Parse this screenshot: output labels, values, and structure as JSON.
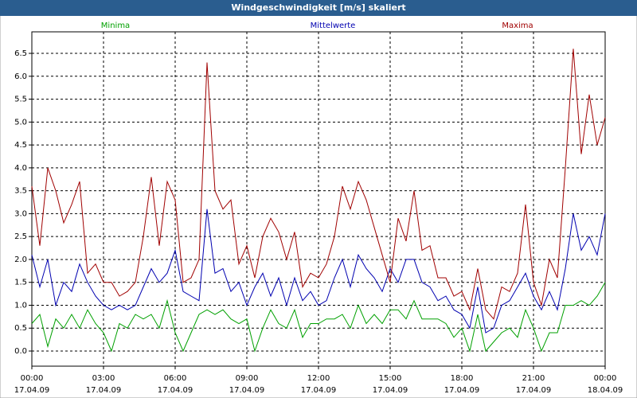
{
  "chart_data": {
    "type": "line",
    "title": "Windgeschwindigkeit [m/s] skaliert",
    "x": [
      0,
      20,
      40,
      60,
      80,
      100,
      120,
      140,
      160,
      180,
      200,
      220,
      240,
      260,
      280,
      300,
      320,
      340,
      360,
      380,
      400,
      420,
      440,
      460,
      480,
      500,
      520,
      540,
      560,
      580,
      600,
      620,
      640,
      660,
      680,
      700,
      720,
      740,
      760,
      780,
      800,
      820,
      840,
      860,
      880,
      900,
      920,
      940,
      960,
      980,
      1000,
      1020,
      1040,
      1060,
      1080,
      1100,
      1120,
      1140,
      1160,
      1180,
      1200,
      1220,
      1240,
      1260,
      1280,
      1300,
      1320,
      1340,
      1360,
      1380,
      1400,
      1420,
      1440
    ],
    "xlim": [
      0,
      1440
    ],
    "xticks": [
      {
        "value": 0,
        "label": "00:00"
      },
      {
        "value": 180,
        "label": "03:00"
      },
      {
        "value": 360,
        "label": "06:00"
      },
      {
        "value": 540,
        "label": "09:00"
      },
      {
        "value": 720,
        "label": "12:00"
      },
      {
        "value": 900,
        "label": "15:00"
      },
      {
        "value": 1080,
        "label": "18:00"
      },
      {
        "value": 1260,
        "label": "21:00"
      },
      {
        "value": 1440,
        "label": "00:00"
      }
    ],
    "xtick_dates": [
      "17.04.09",
      "17.04.09",
      "17.04.09",
      "17.04.09",
      "17.04.09",
      "17.04.09",
      "17.04.09",
      "17.04.09",
      "18.04.09"
    ],
    "ylim": [
      -0.33,
      6.97
    ],
    "yticks": [
      {
        "value": 0,
        "label": "0.0"
      },
      0.5,
      {
        "value": 1,
        "label": "1.0"
      },
      1.5,
      {
        "value": 2,
        "label": "2.0"
      },
      2.5,
      {
        "value": 3,
        "label": "3.0"
      },
      3.5,
      {
        "value": 4,
        "label": "4.0"
      },
      4.5,
      {
        "value": 5,
        "label": "5.0"
      },
      5.5,
      {
        "value": 6,
        "label": "6.0"
      },
      6.5
    ],
    "grid": true,
    "series": [
      {
        "name": "Minima",
        "color": "#00a000",
        "values": [
          0.6,
          0.8,
          0.1,
          0.7,
          0.5,
          0.8,
          0.5,
          0.9,
          0.6,
          0.4,
          0.0,
          0.6,
          0.5,
          0.8,
          0.7,
          0.8,
          0.5,
          1.1,
          0.4,
          0.0,
          0.4,
          0.8,
          0.9,
          0.8,
          0.9,
          0.7,
          0.6,
          0.7,
          0.0,
          0.5,
          0.9,
          0.6,
          0.5,
          0.9,
          0.3,
          0.6,
          0.6,
          0.7,
          0.7,
          0.8,
          0.5,
          1.0,
          0.6,
          0.8,
          0.6,
          0.9,
          0.9,
          0.7,
          1.1,
          0.7,
          0.7,
          0.7,
          0.6,
          0.3,
          0.5,
          0.0,
          0.8,
          0.0,
          0.2,
          0.4,
          0.5,
          0.3,
          0.9,
          0.5,
          0.0,
          0.4,
          0.4,
          1.0,
          1.0,
          1.1,
          1.0,
          1.2,
          1.5
        ]
      },
      {
        "name": "Mittelwerte",
        "color": "#0000b0",
        "values": [
          2.1,
          1.4,
          2.0,
          1.0,
          1.5,
          1.3,
          1.9,
          1.5,
          1.2,
          1.0,
          0.9,
          1.0,
          0.9,
          1.0,
          1.4,
          1.8,
          1.5,
          1.7,
          2.2,
          1.3,
          1.2,
          1.1,
          3.1,
          1.7,
          1.8,
          1.3,
          1.5,
          1.0,
          1.4,
          1.7,
          1.2,
          1.6,
          1.0,
          1.6,
          1.1,
          1.3,
          1.0,
          1.1,
          1.6,
          2.0,
          1.4,
          2.1,
          1.8,
          1.6,
          1.3,
          1.8,
          1.5,
          2.0,
          2.0,
          1.5,
          1.4,
          1.1,
          1.2,
          0.9,
          0.8,
          0.5,
          1.4,
          0.4,
          0.5,
          1.0,
          1.1,
          1.4,
          1.7,
          1.2,
          0.9,
          1.3,
          0.9,
          1.8,
          3.0,
          2.2,
          2.5,
          2.1,
          3.0
        ]
      },
      {
        "name": "Maxima",
        "color": "#a00000",
        "values": [
          3.6,
          2.3,
          4.0,
          3.5,
          2.8,
          3.2,
          3.7,
          1.7,
          1.9,
          1.5,
          1.5,
          1.2,
          1.3,
          1.5,
          2.5,
          3.8,
          2.3,
          3.7,
          3.3,
          1.5,
          1.6,
          2.0,
          6.3,
          3.5,
          3.1,
          3.3,
          1.9,
          2.3,
          1.6,
          2.5,
          2.9,
          2.6,
          2.0,
          2.6,
          1.4,
          1.7,
          1.6,
          1.9,
          2.5,
          3.6,
          3.1,
          3.7,
          3.3,
          2.7,
          2.1,
          1.5,
          2.9,
          2.4,
          3.5,
          2.2,
          2.3,
          1.6,
          1.6,
          1.2,
          1.3,
          0.9,
          1.8,
          0.9,
          0.7,
          1.4,
          1.3,
          1.7,
          3.2,
          1.5,
          1.0,
          2.0,
          1.6,
          4.0,
          6.6,
          4.3,
          5.6,
          4.5,
          5.1
        ]
      }
    ]
  }
}
